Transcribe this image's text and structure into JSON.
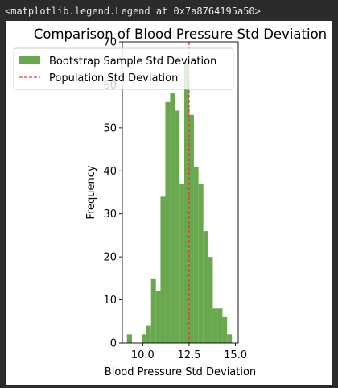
{
  "output_header": "<matplotlib.legend.Legend at 0x7a8764195a50>",
  "chart_data": {
    "type": "bar",
    "title": "Comparison of Blood Pressure Std Deviation",
    "xlabel": "Blood Pressure Std Deviation",
    "ylabel": "Frequency",
    "xlim": [
      8.9,
      15.15
    ],
    "ylim": [
      0,
      70
    ],
    "xticks": [
      "10.0",
      "12.5",
      "15.0"
    ],
    "yticks": [
      "0",
      "10",
      "20",
      "30",
      "40",
      "50",
      "60",
      "70"
    ],
    "bar_color": "#6aa84f",
    "bins": [
      {
        "x0": 9.15,
        "x1": 9.42,
        "count": 2
      },
      {
        "x0": 9.42,
        "x1": 9.68,
        "count": 0
      },
      {
        "x0": 9.68,
        "x1": 9.94,
        "count": 0
      },
      {
        "x0": 9.94,
        "x1": 10.19,
        "count": 2
      },
      {
        "x0": 10.19,
        "x1": 10.45,
        "count": 4
      },
      {
        "x0": 10.45,
        "x1": 10.71,
        "count": 15
      },
      {
        "x0": 10.71,
        "x1": 10.96,
        "count": 12
      },
      {
        "x0": 10.96,
        "x1": 11.22,
        "count": 34
      },
      {
        "x0": 11.22,
        "x1": 11.48,
        "count": 56
      },
      {
        "x0": 11.48,
        "x1": 11.73,
        "count": 58
      },
      {
        "x0": 11.73,
        "x1": 11.99,
        "count": 54
      },
      {
        "x0": 11.99,
        "x1": 12.24,
        "count": 37
      },
      {
        "x0": 12.24,
        "x1": 12.5,
        "count": 65
      },
      {
        "x0": 12.5,
        "x1": 12.76,
        "count": 53
      },
      {
        "x0": 12.76,
        "x1": 13.01,
        "count": 41
      },
      {
        "x0": 13.01,
        "x1": 13.27,
        "count": 37
      },
      {
        "x0": 13.27,
        "x1": 13.53,
        "count": 26
      },
      {
        "x0": 13.53,
        "x1": 13.78,
        "count": 20
      },
      {
        "x0": 13.78,
        "x1": 14.04,
        "count": 8
      },
      {
        "x0": 14.04,
        "x1": 14.3,
        "count": 8
      },
      {
        "x0": 14.3,
        "x1": 14.55,
        "count": 6
      },
      {
        "x0": 14.55,
        "x1": 14.81,
        "count": 2
      }
    ],
    "population_std": 12.5,
    "population_line_color": "#d9442b",
    "legend": {
      "placement": "upper-left",
      "entries": [
        {
          "label": "Bootstrap Sample Std Deviation",
          "style": "patch",
          "color": "#6aa84f"
        },
        {
          "label": "Population Std Deviation",
          "style": "dashed-line",
          "color": "#d9442b"
        }
      ]
    }
  }
}
